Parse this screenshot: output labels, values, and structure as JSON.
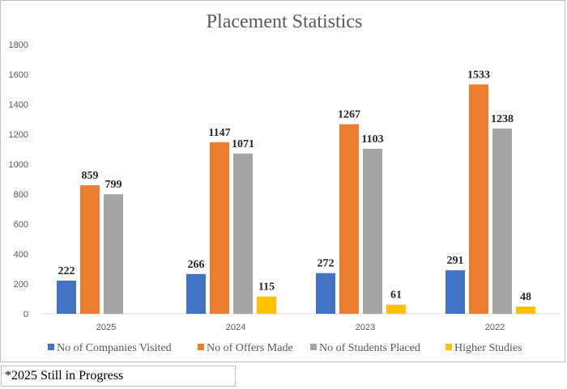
{
  "chart_data": {
    "type": "bar",
    "title": "Placement Statistics",
    "categories": [
      "2025",
      "2024",
      "2023",
      "2022"
    ],
    "series": [
      {
        "name": "No of Companies Visited",
        "color": "#4472C4",
        "values": [
          222,
          266,
          272,
          291
        ]
      },
      {
        "name": "No of Offers Made",
        "color": "#ED7D31",
        "values": [
          859,
          1147,
          1267,
          1533
        ]
      },
      {
        "name": "No of Students Placed",
        "color": "#A5A5A5",
        "values": [
          799,
          1071,
          1103,
          1238
        ]
      },
      {
        "name": "Higher Studies",
        "color": "#FFC000",
        "values": [
          null,
          115,
          61,
          48
        ]
      }
    ],
    "ylim": [
      0,
      1800
    ],
    "yticks": [
      0,
      200,
      400,
      600,
      800,
      1000,
      1200,
      1400,
      1600,
      1800
    ],
    "grid": false,
    "legend_position": "bottom"
  },
  "footnote": "*2025 Still in Progress"
}
